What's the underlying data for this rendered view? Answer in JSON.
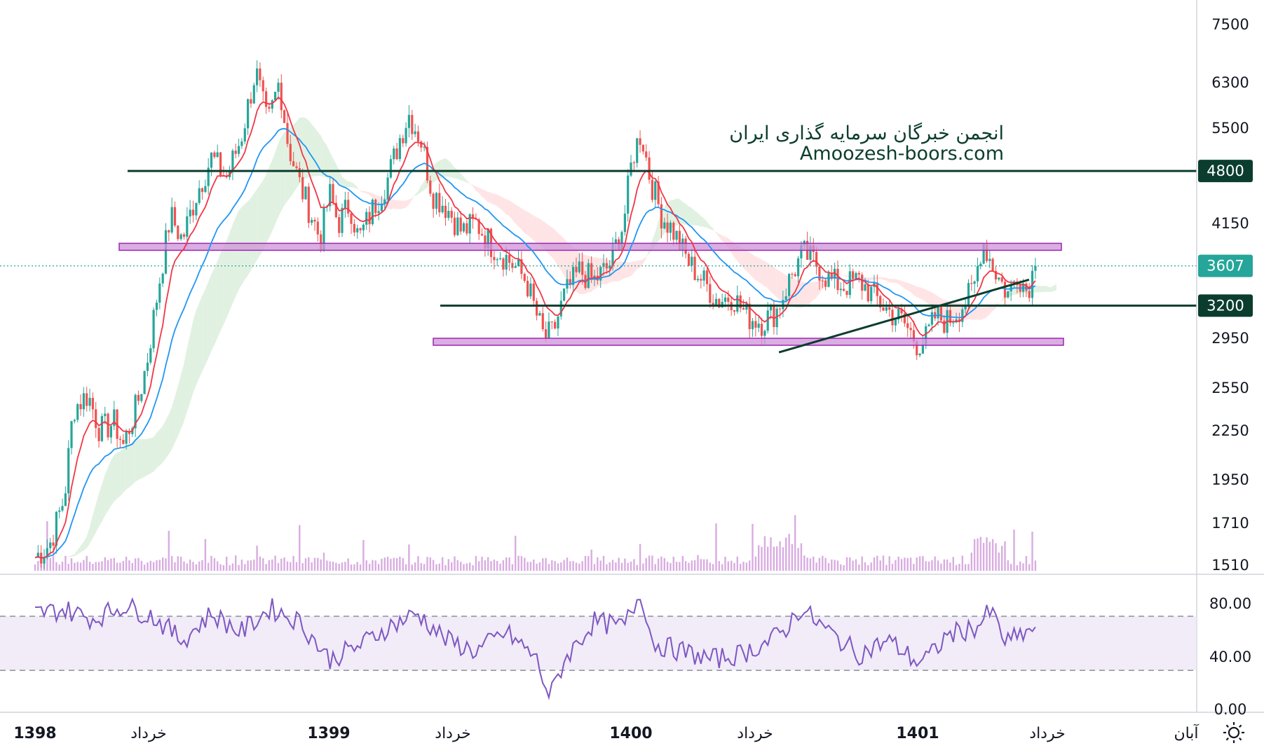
{
  "watermark": {
    "line1": "انجمن خبرگان سرمایه گذاری ایران",
    "line2": "Amoozesh-boors.com"
  },
  "price_axis": {
    "ticks": [
      "7500",
      "6300",
      "5500",
      "4800",
      "4150",
      "3607",
      "3200",
      "2950",
      "2550",
      "2250",
      "1950",
      "1710",
      "1510"
    ],
    "badges": [
      {
        "label": "4800",
        "value": 4800,
        "color": "#0b3d2e"
      },
      {
        "label": "3607",
        "value": 3607,
        "color": "#26a69a"
      },
      {
        "label": "3200",
        "value": 3200,
        "color": "#0b3d2e"
      }
    ]
  },
  "rsi_axis": {
    "ticks": [
      "80.00",
      "40.00",
      "0.00"
    ]
  },
  "time_axis": {
    "labels": [
      "1398",
      "خرداد",
      "1399",
      "خرداد",
      "1400",
      "خرداد",
      "1401",
      "خرداد",
      "آبان"
    ]
  },
  "icons": {
    "settings": "gear-icon"
  },
  "colors": {
    "up": "#26a69a",
    "down": "#ef5350",
    "ma_fast": "#f23645",
    "ma_slow": "#2196f3",
    "level_line": "#0b3d2e",
    "zone_fill": "#ce93d8",
    "zone_stroke": "#9c27b0",
    "rsi_line": "#7e57c2",
    "volume": "#ba68c8"
  },
  "chart_data": [
    {
      "type": "candlestick",
      "title": "",
      "xlabel": "",
      "ylabel": "",
      "scale": "log",
      "ylim": [
        1440,
        7700
      ],
      "grid": false,
      "x_labels": [
        "1398",
        "خرداد",
        "1399",
        "خرداد",
        "1400",
        "خرداد",
        "1401",
        "خرداد",
        "آبان"
      ],
      "last_price": 3607,
      "horizontal_levels": [
        4800,
        3200
      ],
      "zones": [
        {
          "low": 3780,
          "high": 3860
        },
        {
          "low": 2850,
          "high": 2900
        }
      ],
      "trendline": {
        "from": [
          1400.5,
          2780
        ],
        "to": [
          1401.35,
          3460
        ]
      },
      "path": [
        [
          1398.0,
          1500
        ],
        [
          1398.05,
          1560
        ],
        [
          1398.1,
          1800
        ],
        [
          1398.13,
          2350
        ],
        [
          1398.18,
          2450
        ],
        [
          1398.22,
          2200
        ],
        [
          1398.27,
          2250
        ],
        [
          1398.3,
          2100
        ],
        [
          1398.35,
          2400
        ],
        [
          1398.38,
          2700
        ],
        [
          1398.42,
          3400
        ],
        [
          1398.46,
          4200
        ],
        [
          1398.5,
          3900
        ],
        [
          1398.55,
          4500
        ],
        [
          1398.6,
          5000
        ],
        [
          1398.65,
          4700
        ],
        [
          1398.7,
          5300
        ],
        [
          1398.75,
          6500
        ],
        [
          1398.79,
          5500
        ],
        [
          1398.83,
          6300
        ],
        [
          1398.86,
          5200
        ],
        [
          1398.9,
          4600
        ],
        [
          1398.94,
          4200
        ],
        [
          1398.97,
          3900
        ],
        [
          1399.0,
          4500
        ],
        [
          1399.03,
          4100
        ],
        [
          1399.07,
          4350
        ],
        [
          1399.1,
          3900
        ],
        [
          1399.15,
          4300
        ],
        [
          1399.2,
          4700
        ],
        [
          1399.24,
          5300
        ],
        [
          1399.27,
          5700
        ],
        [
          1399.31,
          5300
        ],
        [
          1399.35,
          4500
        ],
        [
          1399.4,
          4300
        ],
        [
          1399.45,
          4000
        ],
        [
          1399.5,
          4100
        ],
        [
          1399.55,
          3850
        ],
        [
          1399.6,
          3700
        ],
        [
          1399.63,
          3600
        ],
        [
          1399.67,
          3450
        ],
        [
          1399.7,
          3150
        ],
        [
          1399.73,
          2900
        ],
        [
          1399.76,
          2950
        ],
        [
          1399.8,
          3300
        ],
        [
          1399.85,
          3550
        ],
        [
          1399.9,
          3450
        ],
        [
          1399.95,
          3600
        ],
        [
          1400.0,
          4100
        ],
        [
          1400.03,
          5000
        ],
        [
          1400.06,
          5400
        ],
        [
          1400.09,
          4700
        ],
        [
          1400.13,
          4200
        ],
        [
          1400.17,
          4000
        ],
        [
          1400.22,
          3650
        ],
        [
          1400.27,
          3450
        ],
        [
          1400.32,
          3250
        ],
        [
          1400.37,
          3300
        ],
        [
          1400.42,
          3100
        ],
        [
          1400.47,
          3050
        ],
        [
          1400.52,
          3150
        ],
        [
          1400.57,
          3500
        ],
        [
          1400.61,
          3750
        ],
        [
          1400.65,
          3650
        ],
        [
          1400.7,
          3450
        ],
        [
          1400.75,
          3400
        ],
        [
          1400.8,
          3450
        ],
        [
          1400.85,
          3300
        ],
        [
          1400.9,
          3150
        ],
        [
          1400.95,
          3050
        ],
        [
          1401.0,
          2850
        ],
        [
          1401.03,
          2900
        ],
        [
          1401.06,
          3100
        ],
        [
          1401.1,
          3050
        ],
        [
          1401.15,
          3200
        ],
        [
          1401.19,
          3350
        ],
        [
          1401.22,
          3900
        ],
        [
          1401.25,
          3650
        ],
        [
          1401.28,
          3450
        ],
        [
          1401.31,
          3300
        ],
        [
          1401.34,
          3550
        ],
        [
          1401.37,
          3350
        ],
        [
          1401.4,
          3607
        ]
      ]
    },
    {
      "type": "line",
      "title": "",
      "series": [
        {
          "name": "",
          "color": "#7e57c2"
        }
      ],
      "ylim": [
        0,
        100
      ],
      "band": [
        30,
        70
      ],
      "grid": false,
      "x": [
        1398.0,
        1398.1,
        1398.2,
        1398.3,
        1398.4,
        1398.5,
        1398.6,
        1398.7,
        1398.8,
        1398.9,
        1399.0,
        1399.1,
        1399.2,
        1399.3,
        1399.4,
        1399.5,
        1399.6,
        1399.7,
        1399.75,
        1399.8,
        1399.9,
        1400.0,
        1400.06,
        1400.1,
        1400.2,
        1400.3,
        1400.4,
        1400.5,
        1400.55,
        1400.6,
        1400.7,
        1400.8,
        1400.9,
        1401.0,
        1401.05,
        1401.1,
        1401.2,
        1401.25,
        1401.3,
        1401.4
      ],
      "values": [
        72,
        75,
        68,
        78,
        70,
        52,
        72,
        58,
        76,
        66,
        38,
        48,
        62,
        72,
        52,
        44,
        58,
        40,
        10,
        38,
        66,
        62,
        88,
        50,
        44,
        38,
        42,
        52,
        60,
        76,
        58,
        42,
        52,
        36,
        42,
        56,
        62,
        74,
        50,
        62
      ]
    }
  ]
}
